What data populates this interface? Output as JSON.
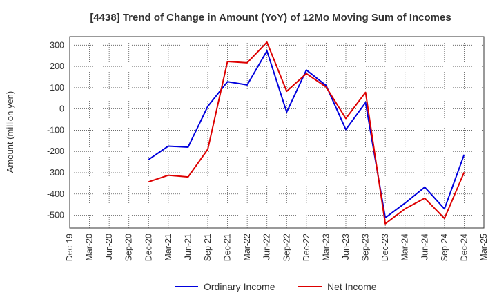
{
  "chart_data": {
    "type": "line",
    "title": "[4438]  Trend of Change in Amount (YoY) of 12Mo Moving Sum of Incomes",
    "ylabel": "Amount (million yen)",
    "xlabel": "",
    "ylim": [
      -560,
      340
    ],
    "yticks": [
      300,
      200,
      100,
      0,
      -100,
      -200,
      -300,
      -400,
      -500
    ],
    "grid": true,
    "legend_position": "bottom",
    "categories": [
      "Dec-19",
      "Mar-20",
      "Jun-20",
      "Sep-20",
      "Dec-20",
      "Mar-21",
      "Jun-21",
      "Sep-21",
      "Dec-21",
      "Mar-22",
      "Jun-22",
      "Sep-22",
      "Dec-22",
      "Mar-23",
      "Jun-23",
      "Sep-23",
      "Dec-23",
      "Mar-24",
      "Jun-24",
      "Sep-24",
      "Dec-24",
      "Mar-25"
    ],
    "series": [
      {
        "name": "Ordinary Income",
        "color": "#0000dd",
        "values": [
          null,
          null,
          null,
          null,
          -238,
          -175,
          -180,
          12,
          128,
          113,
          273,
          -15,
          183,
          110,
          -97,
          30,
          -512,
          -443,
          -368,
          -470,
          -215,
          null
        ]
      },
      {
        "name": "Net Income",
        "color": "#dd0000",
        "values": [
          null,
          null,
          null,
          null,
          -343,
          -312,
          -320,
          -190,
          223,
          217,
          314,
          83,
          166,
          103,
          -45,
          78,
          -540,
          -470,
          -420,
          -515,
          -298,
          null
        ]
      }
    ]
  }
}
